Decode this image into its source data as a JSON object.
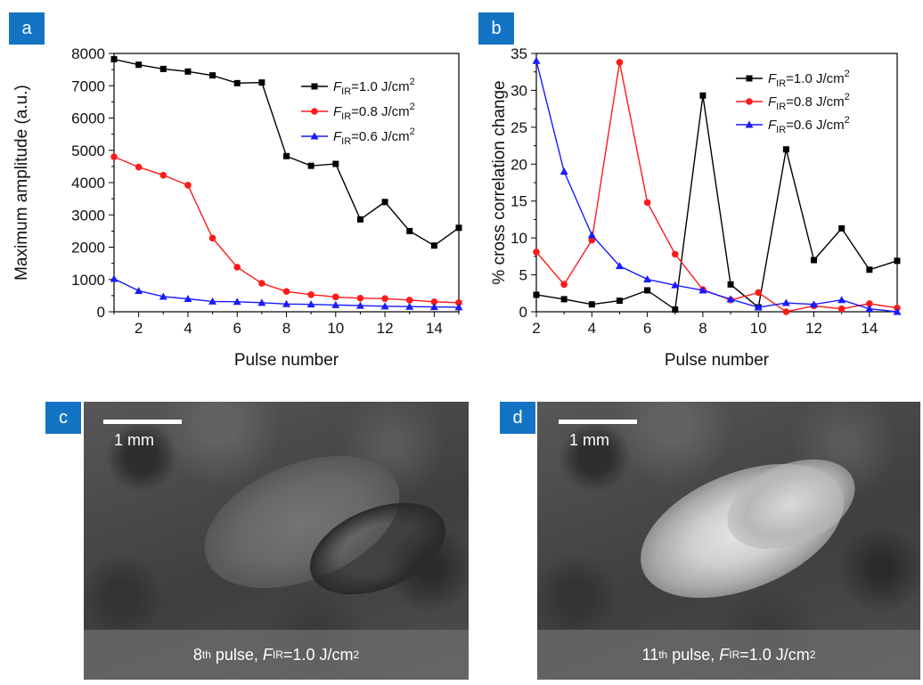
{
  "chart_data": [
    {
      "type": "line",
      "panel": "a",
      "xlabel": "Pulse number",
      "ylabel": "Maximum amplitude (a.u.)",
      "xlim": [
        1,
        15
      ],
      "ylim": [
        0,
        8000
      ],
      "xticks": [
        2,
        4,
        6,
        8,
        10,
        12,
        14
      ],
      "yticks": [
        0,
        1000,
        2000,
        3000,
        4000,
        5000,
        6000,
        7000,
        8000
      ],
      "x": [
        1,
        2,
        3,
        4,
        5,
        6,
        7,
        8,
        9,
        10,
        11,
        12,
        13,
        14,
        15
      ],
      "legend_position": "top-right",
      "series": [
        {
          "name_prefix": "F",
          "name_sub": "IR",
          "name_rest": "=1.0 J/cm",
          "name_sup": "2",
          "color": "#000000",
          "marker": "square",
          "values": [
            7820,
            7650,
            7520,
            7440,
            7320,
            7080,
            7100,
            4820,
            4520,
            4580,
            2860,
            3400,
            2500,
            2050,
            2600
          ]
        },
        {
          "name_prefix": "F",
          "name_sub": "IR",
          "name_rest": "=0.8 J/cm",
          "name_sup": "2",
          "color": "#ff1a1a",
          "marker": "circle",
          "values": [
            4800,
            4480,
            4230,
            3920,
            2280,
            1380,
            880,
            630,
            530,
            460,
            420,
            410,
            360,
            310,
            280
          ]
        },
        {
          "name_prefix": "F",
          "name_sub": "IR",
          "name_rest": "=0.6 J/cm",
          "name_sup": "2",
          "color": "#1a1aff",
          "marker": "triangle",
          "values": [
            1020,
            650,
            470,
            400,
            320,
            310,
            280,
            240,
            230,
            210,
            190,
            170,
            160,
            150,
            140
          ]
        }
      ]
    },
    {
      "type": "line",
      "panel": "b",
      "xlabel": "Pulse number",
      "ylabel": "% cross correlation change",
      "xlim": [
        2,
        15
      ],
      "ylim": [
        0,
        35
      ],
      "xticks": [
        2,
        4,
        6,
        8,
        10,
        12,
        14
      ],
      "yticks": [
        0,
        5,
        10,
        15,
        20,
        25,
        30,
        35
      ],
      "x": [
        2,
        3,
        4,
        5,
        6,
        7,
        8,
        9,
        10,
        11,
        12,
        13,
        14,
        15
      ],
      "legend_position": "top-right",
      "series": [
        {
          "name_prefix": "F",
          "name_sub": "IR",
          "name_rest": "=1.0 J/cm",
          "name_sup": "2",
          "color": "#000000",
          "marker": "square",
          "values": [
            2.3,
            1.7,
            1.0,
            1.5,
            2.9,
            0.3,
            29.3,
            3.7,
            0.6,
            22.0,
            7.0,
            11.3,
            5.7,
            6.9
          ]
        },
        {
          "name_prefix": "F",
          "name_sub": "IR",
          "name_rest": "=0.8 J/cm",
          "name_sup": "2",
          "color": "#ff1a1a",
          "marker": "circle",
          "values": [
            8.1,
            3.7,
            9.7,
            33.8,
            14.8,
            7.8,
            3.0,
            1.6,
            2.6,
            0.0,
            0.8,
            0.4,
            1.1,
            0.5
          ]
        },
        {
          "name_prefix": "F",
          "name_sub": "IR",
          "name_rest": "=0.6 J/cm",
          "name_sup": "2",
          "color": "#1a1aff",
          "marker": "triangle",
          "values": [
            34.0,
            19.0,
            10.4,
            6.2,
            4.4,
            3.6,
            2.9,
            1.7,
            0.6,
            1.2,
            1.0,
            1.6,
            0.4,
            0.0
          ]
        }
      ]
    }
  ],
  "panels": {
    "a": "a",
    "b": "b",
    "c": "c",
    "d": "d"
  },
  "images": {
    "c": {
      "scalebar_label": "1 mm",
      "caption_num": "8",
      "caption_ord": "th",
      "caption_mid": " pulse, ",
      "caption_f": "F",
      "caption_sub": "IR",
      "caption_rest": "=1.0 J/cm",
      "caption_sup": "2"
    },
    "d": {
      "scalebar_label": "1 mm",
      "caption_num": "11",
      "caption_ord": "th",
      "caption_mid": " pulse, ",
      "caption_f": "F",
      "caption_sub": "IR",
      "caption_rest": "=1.0 J/cm",
      "caption_sup": "2"
    }
  }
}
